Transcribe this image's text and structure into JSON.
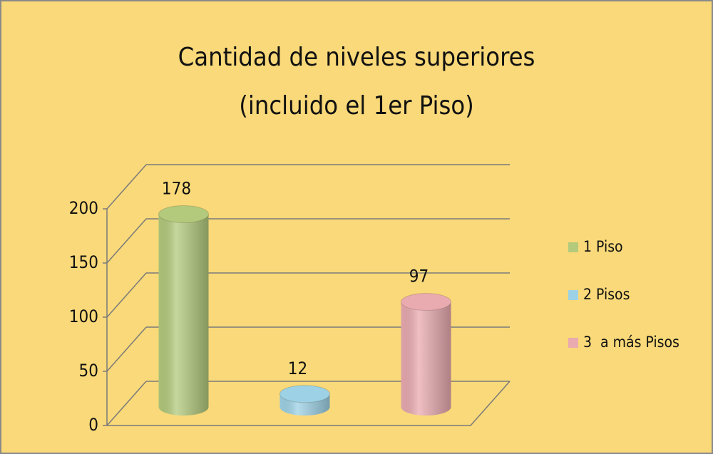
{
  "chart_data": {
    "type": "bar3d",
    "title": [
      "Cantidad de niveles superiores",
      "(incluido el 1er Piso)"
    ],
    "categories": [
      null
    ],
    "series": [
      {
        "name": "1 Piso",
        "color": "#b3ca7c",
        "values": [
          178
        ]
      },
      {
        "name": "2 Pisos",
        "color": "#9dd2e6",
        "values": [
          12
        ]
      },
      {
        "name": "3  a más Pisos",
        "color": "#e9aab0",
        "values": [
          97
        ]
      }
    ],
    "ylim": [
      0,
      200
    ],
    "yticks": [
      0,
      50,
      100,
      150,
      200
    ],
    "grid": true,
    "legend": "right"
  }
}
